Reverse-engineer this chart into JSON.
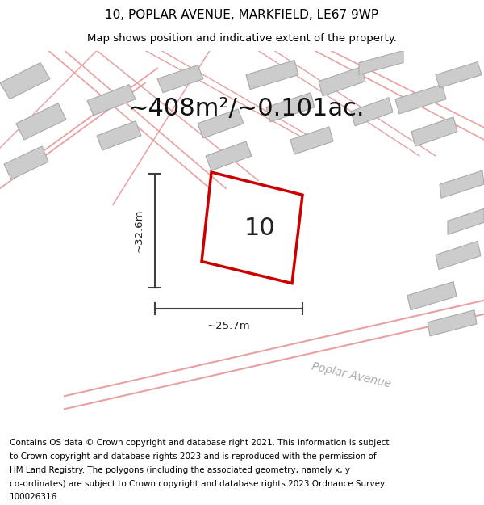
{
  "title_line1": "10, POPLAR AVENUE, MARKFIELD, LE67 9WP",
  "title_line2": "Map shows position and indicative extent of the property.",
  "area_label": "~408m²/~0.101ac.",
  "property_number": "10",
  "dim_vertical": "~32.6m",
  "dim_horizontal": "~25.7m",
  "street_label": "Poplar Avenue",
  "footer_lines": [
    "Contains OS data © Crown copyright and database right 2021. This information is subject",
    "to Crown copyright and database rights 2023 and is reproduced with the permission of",
    "HM Land Registry. The polygons (including the associated geometry, namely x, y",
    "co-ordinates) are subject to Crown copyright and database rights 2023 Ordnance Survey",
    "100026316."
  ],
  "map_bg_color": "#f2f0f0",
  "title_color": "#000000",
  "footer_color": "#000000",
  "red_polygon_color": "#cc0000",
  "pink_line_color": "#e8a0a0",
  "dim_line_color": "#404040",
  "title_fontsize": 11,
  "subtitle_fontsize": 9.5,
  "area_fontsize": 22,
  "property_num_fontsize": 22,
  "dim_fontsize": 9.5,
  "street_fontsize": 10,
  "footer_fontsize": 7.5
}
